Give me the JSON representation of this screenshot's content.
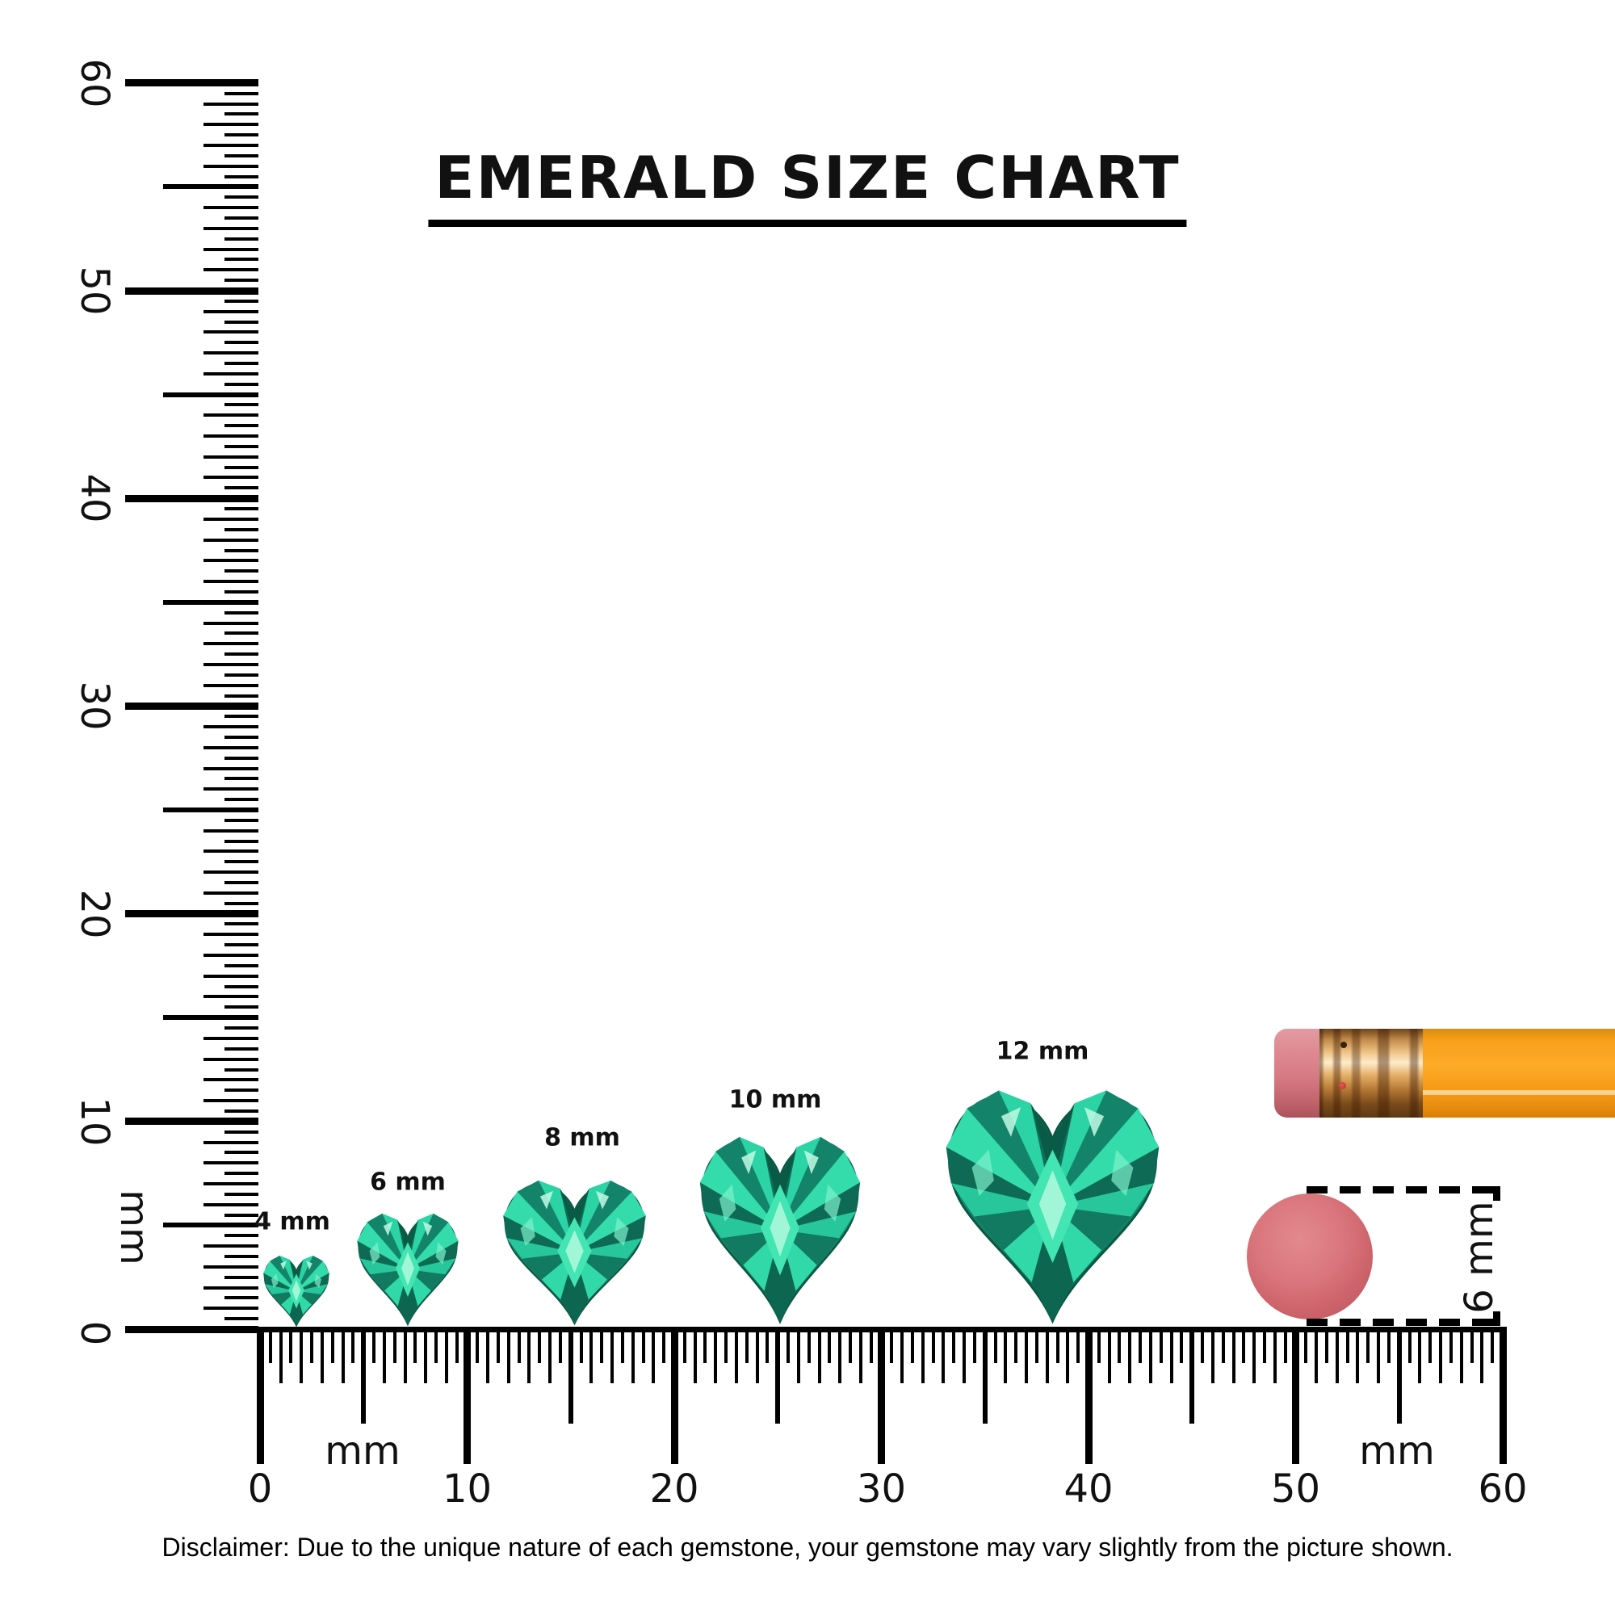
{
  "title": "EMERALD SIZE CHART",
  "rulers": {
    "vertical": {
      "unit": "mm",
      "major_labels": [
        "0",
        "10",
        "20",
        "30",
        "40",
        "50",
        "60"
      ]
    },
    "horizontal": {
      "major_labels": [
        "0",
        "10",
        "20",
        "30",
        "40",
        "50",
        "60"
      ],
      "unit_left": "mm",
      "unit_right": "mm"
    }
  },
  "gems": [
    {
      "name": "heart-emerald-4mm",
      "label": "4 mm",
      "size_mm": 4
    },
    {
      "name": "heart-emerald-6mm",
      "label": "6 mm",
      "size_mm": 6
    },
    {
      "name": "heart-emerald-8mm",
      "label": "8 mm",
      "size_mm": 8
    },
    {
      "name": "heart-emerald-10mm",
      "label": "10 mm",
      "size_mm": 10
    },
    {
      "name": "heart-emerald-12mm",
      "label": "12 mm",
      "size_mm": 12
    }
  ],
  "scale_objects": {
    "pencil_icon": "pencil",
    "round_eraser_icon": "round-eraser",
    "eraser_measure_label": "6 mm"
  },
  "disclaimer": "Disclaimer: Due to the unique nature of each gemstone, your gemstone may vary slightly from the picture shown.",
  "colors": {
    "gem_dark": "#0d6750",
    "gem_mid": "#1fa383",
    "gem_bright": "#31d9a8",
    "gem_pale": "#a2f6d8",
    "pencil_body": "#f9a01b",
    "pencil_ferrule": "#c08a4a",
    "pencil_eraser_tip": "#dd8790",
    "round_eraser": "#cc626a",
    "ink": "#000000"
  }
}
